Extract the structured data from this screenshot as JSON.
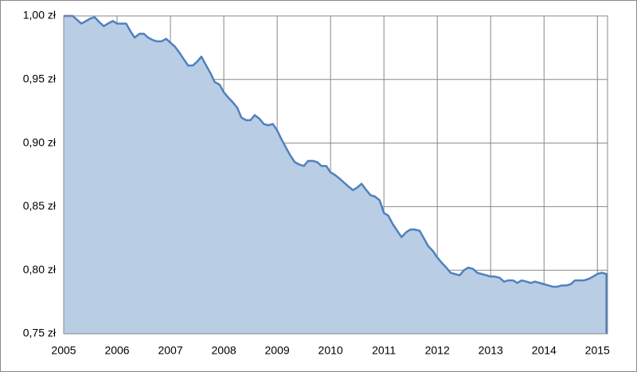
{
  "chart_data": {
    "type": "area",
    "x": [
      2005,
      2005.08,
      2005.17,
      2005.25,
      2005.33,
      2005.42,
      2005.5,
      2005.58,
      2005.67,
      2005.75,
      2005.83,
      2005.92,
      2006,
      2006.08,
      2006.17,
      2006.25,
      2006.33,
      2006.42,
      2006.5,
      2006.58,
      2006.67,
      2006.75,
      2006.83,
      2006.92,
      2007,
      2007.08,
      2007.17,
      2007.25,
      2007.33,
      2007.42,
      2007.5,
      2007.58,
      2007.67,
      2007.75,
      2007.83,
      2007.92,
      2008,
      2008.08,
      2008.17,
      2008.25,
      2008.33,
      2008.42,
      2008.5,
      2008.58,
      2008.67,
      2008.75,
      2008.83,
      2008.92,
      2009,
      2009.08,
      2009.17,
      2009.25,
      2009.33,
      2009.42,
      2009.5,
      2009.58,
      2009.67,
      2009.75,
      2009.83,
      2009.92,
      2010,
      2010.08,
      2010.17,
      2010.25,
      2010.33,
      2010.42,
      2010.5,
      2010.58,
      2010.67,
      2010.75,
      2010.83,
      2010.92,
      2011,
      2011.08,
      2011.17,
      2011.25,
      2011.33,
      2011.42,
      2011.5,
      2011.58,
      2011.67,
      2011.75,
      2011.83,
      2011.92,
      2012,
      2012.08,
      2012.17,
      2012.25,
      2012.33,
      2012.42,
      2012.5,
      2012.58,
      2012.67,
      2012.75,
      2012.83,
      2012.92,
      2013,
      2013.08,
      2013.17,
      2013.25,
      2013.33,
      2013.42,
      2013.5,
      2013.58,
      2013.67,
      2013.75,
      2013.83,
      2013.92,
      2014,
      2014.08,
      2014.17,
      2014.25,
      2014.33,
      2014.42,
      2014.5,
      2014.58,
      2014.67,
      2014.75,
      2014.83,
      2014.92,
      2015,
      2015.08,
      2015.17
    ],
    "values": [
      1.0,
      1.0,
      1.0,
      0.997,
      0.994,
      0.996,
      0.998,
      0.999,
      0.995,
      0.992,
      0.994,
      0.996,
      0.994,
      0.994,
      0.994,
      0.988,
      0.983,
      0.986,
      0.986,
      0.983,
      0.981,
      0.98,
      0.98,
      0.982,
      0.979,
      0.976,
      0.971,
      0.966,
      0.961,
      0.961,
      0.964,
      0.968,
      0.961,
      0.955,
      0.948,
      0.946,
      0.94,
      0.936,
      0.932,
      0.928,
      0.92,
      0.918,
      0.918,
      0.922,
      0.919,
      0.915,
      0.914,
      0.915,
      0.91,
      0.903,
      0.896,
      0.89,
      0.885,
      0.883,
      0.882,
      0.886,
      0.886,
      0.885,
      0.882,
      0.882,
      0.877,
      0.875,
      0.872,
      0.869,
      0.866,
      0.863,
      0.865,
      0.868,
      0.863,
      0.859,
      0.858,
      0.855,
      0.845,
      0.843,
      0.836,
      0.831,
      0.826,
      0.83,
      0.832,
      0.832,
      0.831,
      0.825,
      0.819,
      0.815,
      0.81,
      0.806,
      0.802,
      0.798,
      0.797,
      0.796,
      0.8,
      0.802,
      0.801,
      0.798,
      0.797,
      0.796,
      0.795,
      0.795,
      0.794,
      0.791,
      0.792,
      0.792,
      0.79,
      0.792,
      0.791,
      0.79,
      0.791,
      0.79,
      0.789,
      0.788,
      0.787,
      0.787,
      0.788,
      0.788,
      0.789,
      0.792,
      0.792,
      0.792,
      0.793,
      0.795,
      0.797,
      0.798,
      0.797
    ],
    "color": "#4f81bd",
    "fill": "#b9cde5",
    "xlim": [
      2005,
      2015.19
    ],
    "xticks": [
      2005,
      2006,
      2007,
      2008,
      2009,
      2010,
      2011,
      2012,
      2013,
      2014,
      2015
    ],
    "ylim": [
      0.75,
      1.0
    ],
    "yticks": [
      {
        "value": 0.75,
        "label": "0,75 zł"
      },
      {
        "value": 0.8,
        "label": "0,80 zł"
      },
      {
        "value": 0.85,
        "label": "0,85 zł"
      },
      {
        "value": 0.9,
        "label": "0,90 zł"
      },
      {
        "value": 0.95,
        "label": "0,95 zł"
      },
      {
        "value": 1.0,
        "label": "1,00 zł"
      }
    ],
    "grid": true
  }
}
